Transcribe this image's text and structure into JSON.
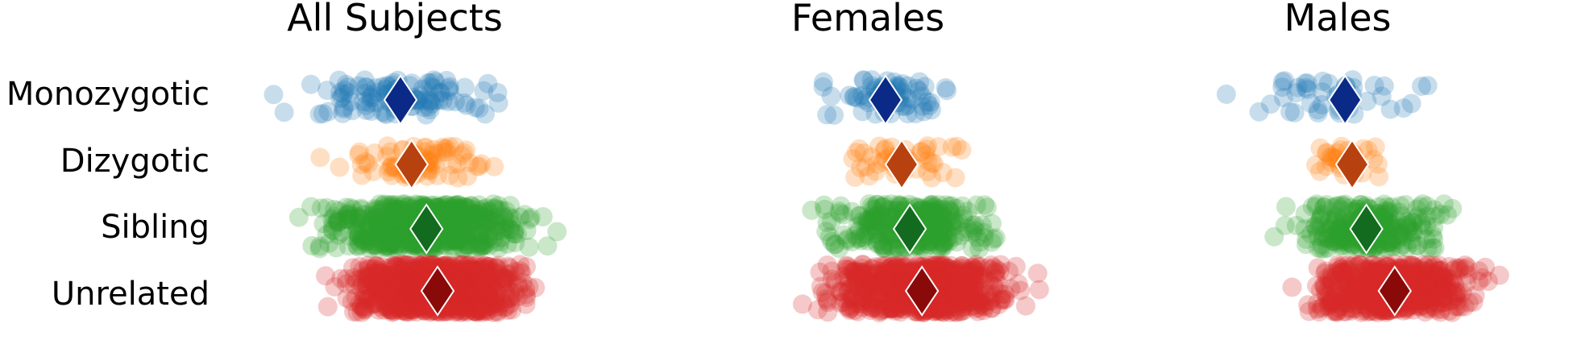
{
  "chart_data": {
    "type": "scatter",
    "style": "strip plot with jitter; diamond marker marks each group's center",
    "categories": [
      "Monozygotic",
      "Dizygotic",
      "Sibling",
      "Unrelated"
    ],
    "group_colors": [
      "#1f77b4",
      "#ff7f0e",
      "#2ca02c",
      "#d62728"
    ],
    "center_colors": [
      "#0b2a87",
      "#b8420f",
      "#126b1e",
      "#8a0a0a"
    ],
    "grid": false,
    "axes_visible": false,
    "panels": [
      {
        "title": "All Subjects",
        "groups": [
          {
            "name": "Monozygotic",
            "center": 0.45,
            "range": [
              0.0,
              1.0
            ],
            "count": 110
          },
          {
            "name": "Dizygotic",
            "center": 0.48,
            "range": [
              0.05,
              0.78
            ],
            "count": 75
          },
          {
            "name": "Sibling",
            "center": 0.52,
            "range": [
              0.0,
              1.0
            ],
            "count": 600
          },
          {
            "name": "Unrelated",
            "center": 0.55,
            "range": [
              0.08,
              1.02
            ],
            "count": 850
          }
        ]
      },
      {
        "title": "Females",
        "groups": [
          {
            "name": "Monozygotic",
            "center": 0.46,
            "range": [
              0.05,
              0.62
            ],
            "count": 70
          },
          {
            "name": "Dizygotic",
            "center": 0.5,
            "range": [
              0.08,
              0.68
            ],
            "count": 45
          },
          {
            "name": "Sibling",
            "center": 0.52,
            "range": [
              0.05,
              0.82
            ],
            "count": 300
          },
          {
            "name": "Unrelated",
            "center": 0.55,
            "range": [
              0.1,
              1.0
            ],
            "count": 650
          }
        ]
      },
      {
        "title": "Males",
        "groups": [
          {
            "name": "Monozygotic",
            "center": 0.43,
            "range": [
              0.08,
              1.0
            ],
            "count": 45
          },
          {
            "name": "Dizygotic",
            "center": 0.45,
            "range": [
              0.15,
              0.68
            ],
            "count": 30
          },
          {
            "name": "Sibling",
            "center": 0.49,
            "range": [
              0.1,
              0.9
            ],
            "count": 280
          },
          {
            "name": "Unrelated",
            "center": 0.57,
            "range": [
              0.1,
              1.0
            ],
            "count": 500
          }
        ]
      }
    ]
  }
}
